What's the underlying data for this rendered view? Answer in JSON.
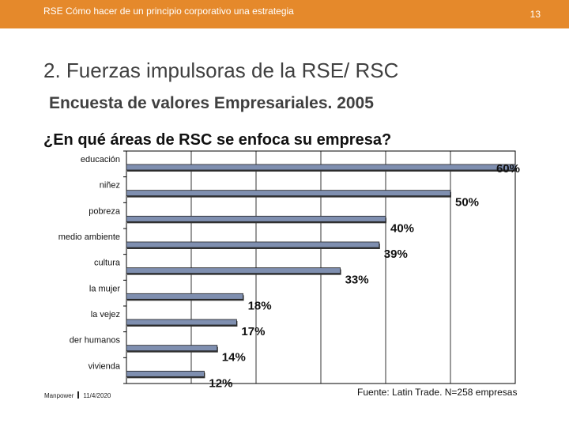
{
  "header": {
    "deck_title": "RSE Cómo hacer de un principio corporativo una estrategia",
    "slide_number": "13",
    "bar_color": "#E5892B"
  },
  "slide": {
    "title": "2. Fuerzas impulsoras de la RSE/ RSC",
    "subtitle": "Encuesta de valores Empresariales. 2005",
    "question": "¿En qué áreas de RSC se enfoca su empresa?"
  },
  "chart_data": {
    "type": "bar",
    "orientation": "horizontal",
    "categories": [
      "educación",
      "niñez",
      "pobreza",
      "medio ambiente",
      "cultura",
      "la mujer",
      "la vejez",
      "der humanos",
      "vivienda"
    ],
    "values": [
      60,
      50,
      40,
      39,
      33,
      18,
      17,
      14,
      12
    ],
    "value_labels": [
      "60%",
      "50%",
      "40%",
      "39%",
      "33%",
      "18%",
      "17%",
      "14%",
      "12%"
    ],
    "xlim": [
      0,
      60
    ],
    "bar_color": "#7F8FB0",
    "gridlines": true
  },
  "footer": {
    "brand": "Manpower",
    "date": "11/4/2020",
    "source": "Fuente: Latin Trade. N=258 empresas"
  }
}
